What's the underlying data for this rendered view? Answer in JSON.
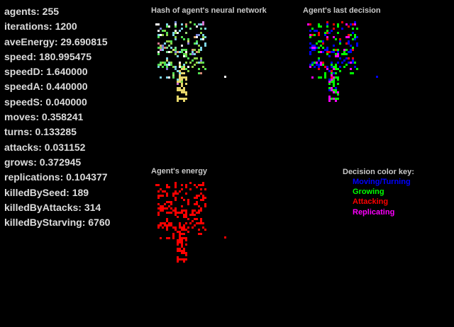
{
  "stats": [
    "agents: 255",
    "iterations: 1200",
    "aveEnergy: 29.690815",
    "speed: 180.995475",
    "speedD: 1.640000",
    "speedA: 0.440000",
    "speedS: 0.040000",
    "moves: 0.358241",
    "turns: 0.133285",
    "attacks: 0.031152",
    "grows: 0.372945",
    "replications: 0.104377",
    "killedBySeed: 189",
    "killedByAttacks: 314",
    "killedByStarving: 6760"
  ],
  "panels": {
    "hash_title": "Hash of agent's neural network",
    "decision_title": "Agent's last decision",
    "energy_title": "Agent's energy"
  },
  "key": {
    "title": "Decision color key:",
    "items": [
      {
        "label": "Moving/Turning",
        "color": "#0000ff"
      },
      {
        "label": "Growing",
        "color": "#00ff00"
      },
      {
        "label": "Attacking",
        "color": "#ff0000"
      },
      {
        "label": "Replicating",
        "color": "#ff00ff"
      }
    ]
  },
  "colors": {
    "background": "#000000",
    "text": "#dcdcdc",
    "energy": "#ff0000"
  }
}
